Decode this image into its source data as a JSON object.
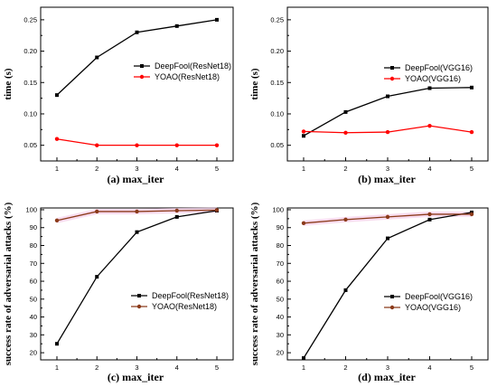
{
  "chart_data": [
    {
      "type": "line",
      "caption": "(a) max_iter",
      "ylabel": "time (s)",
      "x": [
        1,
        2,
        3,
        4,
        5
      ],
      "xticks": [
        "1",
        "2",
        "3",
        "4",
        "5"
      ],
      "ylim": [
        0.025,
        0.27
      ],
      "yticks": [
        "0.05",
        "0.10",
        "0.15",
        "0.20",
        "0.25"
      ],
      "ytick_values": [
        0.05,
        0.1,
        0.15,
        0.2,
        0.25
      ],
      "legend": "right-middle",
      "series": [
        {
          "name": "DeepFool(ResNet18)",
          "color": "#000000",
          "marker": "square",
          "values": [
            0.13,
            0.19,
            0.23,
            0.24,
            0.25
          ]
        },
        {
          "name": "YOAO(ResNet18)",
          "color": "#ff0000",
          "marker": "circle",
          "values": [
            0.06,
            0.05,
            0.05,
            0.05,
            0.05
          ]
        }
      ]
    },
    {
      "type": "line",
      "caption": "(b) max_iter",
      "ylabel": "time (s)",
      "x": [
        1,
        2,
        3,
        4,
        5
      ],
      "xticks": [
        "1",
        "2",
        "3",
        "4",
        "5"
      ],
      "ylim": [
        0.025,
        0.27
      ],
      "yticks": [
        "0.05",
        "0.10",
        "0.15",
        "0.20",
        "0.25"
      ],
      "ytick_values": [
        0.05,
        0.1,
        0.15,
        0.2,
        0.25
      ],
      "legend": "right-middle",
      "series": [
        {
          "name": "DeepFool(VGG16)",
          "color": "#000000",
          "marker": "square",
          "values": [
            0.065,
            0.103,
            0.128,
            0.141,
            0.142
          ]
        },
        {
          "name": "YOAO(VGG16)",
          "color": "#ff0000",
          "marker": "circle",
          "values": [
            0.072,
            0.07,
            0.071,
            0.081,
            0.071
          ]
        }
      ]
    },
    {
      "type": "line",
      "caption": "(c) max_iter",
      "ylabel": "success rate of adversarial attacks (%)",
      "x": [
        1,
        2,
        3,
        4,
        5
      ],
      "xticks": [
        "1",
        "2",
        "3",
        "4",
        "5"
      ],
      "ylim": [
        16,
        101
      ],
      "yticks": [
        "20",
        "30",
        "40",
        "50",
        "60",
        "70",
        "80",
        "90",
        "100"
      ],
      "ytick_values": [
        20,
        30,
        40,
        50,
        60,
        70,
        80,
        90,
        100
      ],
      "legend": "right-middle",
      "series": [
        {
          "name": "DeepFool(ResNet18)",
          "color": "#000000",
          "marker": "square",
          "values": [
            25,
            62.5,
            87.5,
            96,
            99.5
          ]
        },
        {
          "name": "YOAO(ResNet18)",
          "color": "#8b3a1a",
          "marker": "circle",
          "values": [
            94,
            99,
            99,
            99.5,
            99.8
          ]
        }
      ]
    },
    {
      "type": "line",
      "caption": "(d) max_iter",
      "ylabel": "success rate of adversarial attacks (%)",
      "x": [
        1,
        2,
        3,
        4,
        5
      ],
      "xticks": [
        "1",
        "2",
        "3",
        "4",
        "5"
      ],
      "ylim": [
        16,
        101
      ],
      "yticks": [
        "20",
        "30",
        "40",
        "50",
        "60",
        "70",
        "80",
        "90",
        "100"
      ],
      "ytick_values": [
        20,
        30,
        40,
        50,
        60,
        70,
        80,
        90,
        100
      ],
      "legend": "right-middle",
      "series": [
        {
          "name": "DeepFool(VGG16)",
          "color": "#000000",
          "marker": "square",
          "values": [
            17,
            55,
            84,
            94.5,
            98.5
          ]
        },
        {
          "name": "YOAO(VGG16)",
          "color": "#8b3a1a",
          "marker": "circle",
          "values": [
            92.5,
            94.5,
            96,
            97.5,
            97.5
          ]
        }
      ]
    }
  ]
}
